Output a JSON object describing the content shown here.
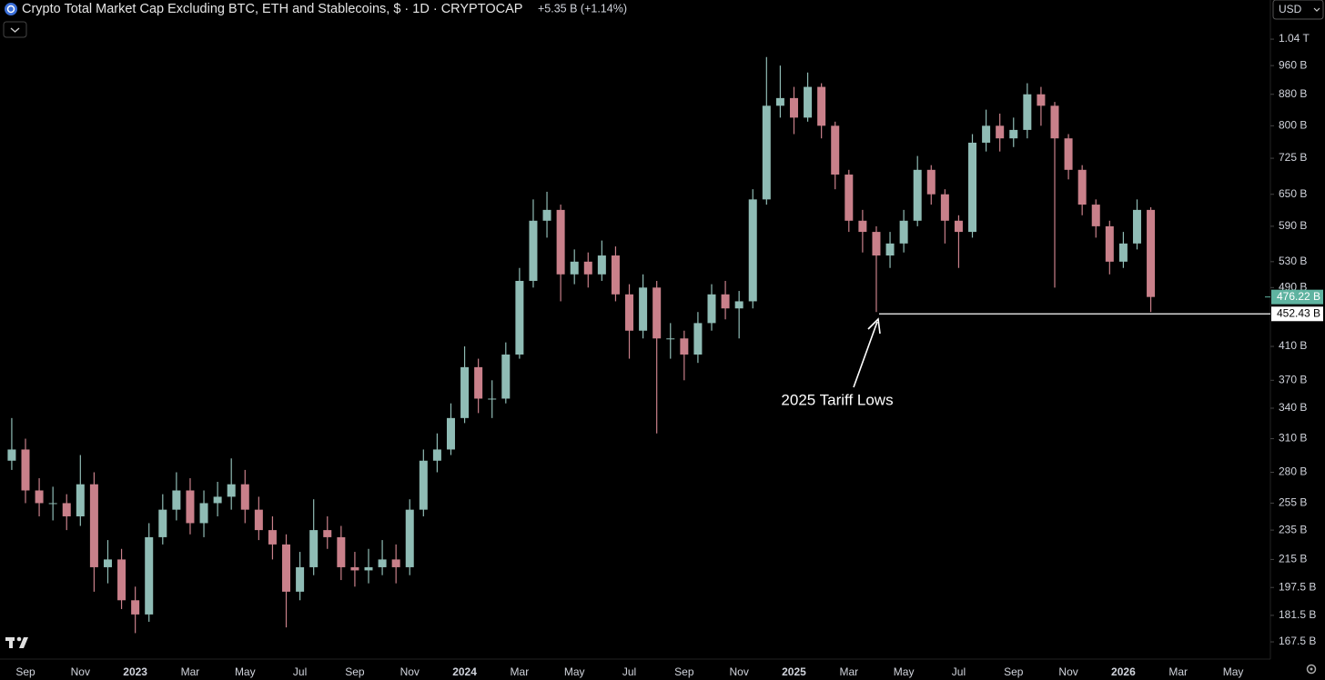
{
  "chart_data": {
    "type": "candlestick",
    "title": "Crypto Total Market Cap Excluding BTC, ETH and Stablecoins, $ · 1D · CRYPTOCAP",
    "change_label": "+5.35 B (+1.14%)",
    "currency": "USD",
    "annotation": "2025 Tariff Lows",
    "log_scale": true,
    "up_color": "#8fbcb5",
    "down_color": "#c9808a",
    "categories": [
      null,
      "Sep",
      null,
      null,
      null,
      "Nov",
      null,
      null,
      null,
      "2023",
      null,
      null,
      null,
      "Mar",
      null,
      null,
      null,
      "May",
      null,
      null,
      null,
      "Jul",
      null,
      null,
      null,
      "Sep",
      null,
      null,
      null,
      "Nov",
      null,
      null,
      null,
      "2024",
      null,
      null,
      null,
      "Mar",
      null,
      null,
      null,
      "May",
      null,
      null,
      null,
      "Jul",
      null,
      null,
      null,
      "Sep",
      null,
      null,
      null,
      "Nov",
      null,
      null,
      null,
      "2025",
      null,
      null,
      null,
      "Mar",
      null,
      null,
      null,
      "May",
      null,
      null,
      null,
      "Jul",
      null,
      null,
      null,
      "Sep",
      null,
      null,
      null,
      "Nov",
      null,
      null,
      null,
      "2026",
      null,
      null,
      null,
      "Mar",
      null,
      null,
      null,
      "May",
      null,
      null
    ],
    "open": [
      290,
      300,
      265,
      255,
      255,
      245,
      270,
      210,
      215,
      190,
      182,
      230,
      250,
      265,
      240,
      255,
      260,
      270,
      250,
      235,
      225,
      195,
      210,
      235,
      230,
      210,
      208,
      210,
      215,
      210,
      250,
      290,
      300,
      330,
      385,
      350,
      350,
      400,
      500,
      600,
      620,
      510,
      530,
      510,
      540,
      480,
      430,
      490,
      420,
      420,
      400,
      440,
      480,
      460,
      470,
      640,
      850,
      870,
      820,
      900,
      800,
      690,
      600,
      580,
      540,
      560,
      600,
      700,
      650,
      600,
      580,
      760,
      800,
      770,
      790,
      880,
      850,
      770,
      700,
      630,
      590,
      530,
      560,
      620,
      null,
      null,
      null,
      null,
      null,
      null,
      null,
      null
    ],
    "high": [
      330,
      310,
      275,
      268,
      262,
      295,
      280,
      228,
      222,
      198,
      240,
      262,
      280,
      275,
      265,
      272,
      292,
      282,
      260,
      245,
      232,
      220,
      258,
      245,
      238,
      220,
      222,
      228,
      225,
      258,
      300,
      315,
      345,
      410,
      395,
      370,
      415,
      520,
      640,
      655,
      630,
      550,
      545,
      565,
      555,
      495,
      510,
      500,
      440,
      430,
      455,
      495,
      500,
      485,
      660,
      985,
      960,
      900,
      940,
      910,
      810,
      700,
      620,
      590,
      580,
      620,
      730,
      710,
      660,
      610,
      780,
      840,
      830,
      820,
      910,
      900,
      860,
      780,
      710,
      640,
      600,
      580,
      640,
      625,
      null,
      null,
      null,
      null,
      null,
      null,
      null,
      null
    ],
    "low": [
      282,
      255,
      245,
      242,
      235,
      238,
      195,
      200,
      185,
      172,
      178,
      225,
      242,
      232,
      230,
      245,
      250,
      240,
      228,
      215,
      175,
      190,
      205,
      222,
      202,
      198,
      200,
      205,
      200,
      205,
      245,
      280,
      295,
      325,
      335,
      330,
      345,
      395,
      490,
      570,
      470,
      495,
      490,
      500,
      470,
      395,
      420,
      315,
      395,
      370,
      390,
      430,
      445,
      420,
      460,
      630,
      820,
      780,
      810,
      770,
      660,
      580,
      545,
      455,
      520,
      545,
      590,
      630,
      560,
      520,
      570,
      740,
      740,
      750,
      770,
      800,
      490,
      680,
      610,
      570,
      510,
      520,
      550,
      455,
      null,
      null,
      null,
      null,
      null,
      null,
      null,
      null
    ],
    "close": [
      300,
      265,
      255,
      255,
      245,
      270,
      210,
      215,
      190,
      182,
      230,
      250,
      265,
      240,
      255,
      260,
      270,
      250,
      235,
      225,
      195,
      210,
      235,
      230,
      210,
      208,
      210,
      215,
      210,
      250,
      290,
      300,
      330,
      385,
      350,
      350,
      400,
      500,
      600,
      620,
      510,
      530,
      510,
      540,
      480,
      430,
      490,
      420,
      420,
      400,
      440,
      480,
      460,
      470,
      640,
      850,
      870,
      820,
      900,
      800,
      690,
      600,
      580,
      540,
      560,
      600,
      700,
      650,
      600,
      580,
      760,
      800,
      770,
      790,
      880,
      850,
      770,
      700,
      630,
      590,
      530,
      560,
      620,
      476.22,
      null,
      null,
      null,
      null,
      null,
      null,
      null,
      null
    ],
    "ylim": [
      160.3,
      1171
    ],
    "yticks": [
      {
        "value": 167.5,
        "label": "167.5 B"
      },
      {
        "value": 181.5,
        "label": "181.5 B"
      },
      {
        "value": 197.5,
        "label": "197.5 B"
      },
      {
        "value": 215,
        "label": "215 B"
      },
      {
        "value": 235,
        "label": "235 B"
      },
      {
        "value": 255,
        "label": "255 B"
      },
      {
        "value": 280,
        "label": "280 B"
      },
      {
        "value": 310,
        "label": "310 B"
      },
      {
        "value": 340,
        "label": "340 B"
      },
      {
        "value": 370,
        "label": "370 B"
      },
      {
        "value": 410,
        "label": "410 B"
      },
      {
        "value": 490,
        "label": "490 B"
      },
      {
        "value": 530,
        "label": "530 B"
      },
      {
        "value": 590,
        "label": "590 B"
      },
      {
        "value": 650,
        "label": "650 B"
      },
      {
        "value": 725,
        "label": "725 B"
      },
      {
        "value": 800,
        "label": "800 B"
      },
      {
        "value": 880,
        "label": "880 B"
      },
      {
        "value": 960,
        "label": "960 B"
      },
      {
        "value": 1040,
        "label": "1.04 T"
      }
    ],
    "last_price": {
      "value": 476.22,
      "label": "476.22 B"
    },
    "support_line": {
      "value": 452.43,
      "label": "452.43 B"
    }
  }
}
